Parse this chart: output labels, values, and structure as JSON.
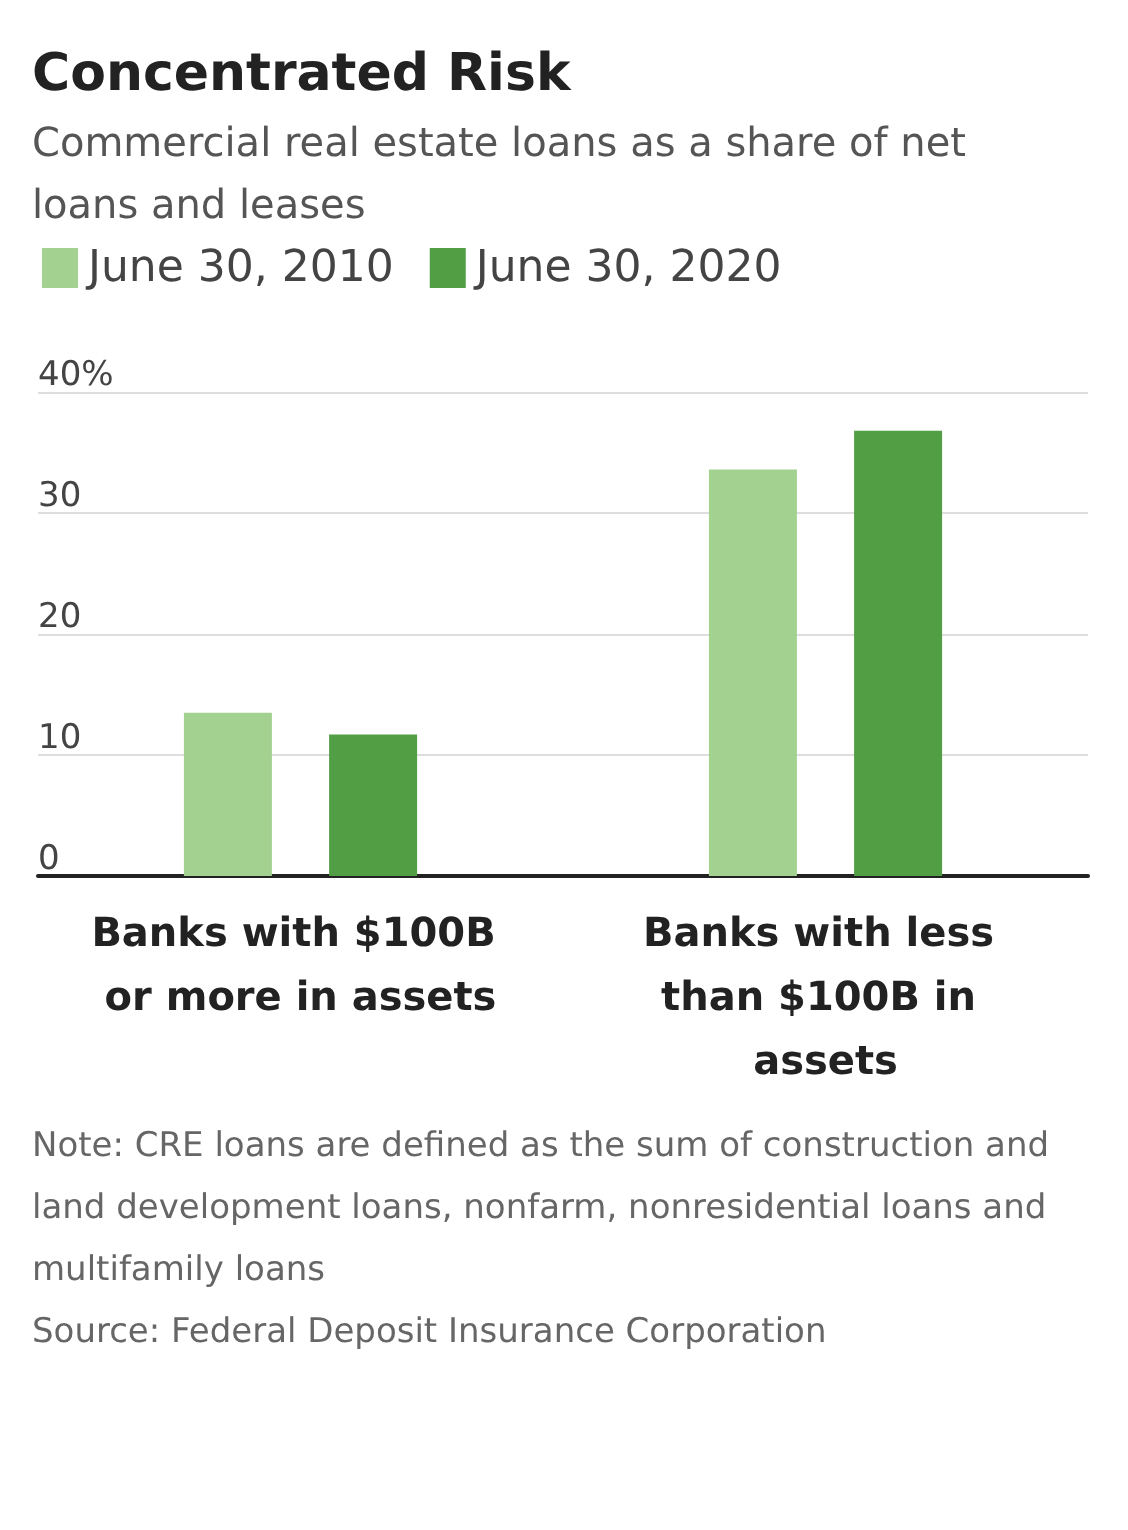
{
  "chart_data": {
    "type": "bar",
    "title": "Concentrated Risk",
    "subtitle": "Commercial real estate loans as a share of net loans and leases",
    "categories": [
      "Banks with $100B or more in assets",
      "Banks with less than $100B in assets"
    ],
    "series": [
      {
        "name": "June 30, 2010",
        "color": "#a3d190",
        "values": [
          13.5,
          33.6
        ]
      },
      {
        "name": "June 30, 2020",
        "color": "#529e45",
        "values": [
          11.7,
          36.8
        ]
      }
    ],
    "ylim": [
      0,
      40
    ],
    "yticks": [
      0,
      10,
      20,
      30,
      {
        "value": 40,
        "label": "40%"
      }
    ],
    "grid": "y",
    "legend": "top left",
    "annotations": [
      "Note: CRE loans are defined as the sum of construction and land development loans, nonfarm, nonresidential loans and multifamily loans",
      "Source: Federal Deposit Insurance Corporation"
    ]
  }
}
